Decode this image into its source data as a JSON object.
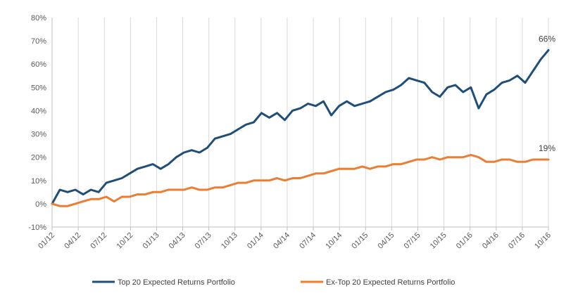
{
  "chart_data": {
    "type": "line",
    "title": "",
    "xlabel": "",
    "ylabel": "",
    "ylim": [
      -10,
      80
    ],
    "y_ticks": [
      -10,
      0,
      10,
      20,
      30,
      40,
      50,
      60,
      70,
      80
    ],
    "y_tick_labels": [
      "-10%",
      "0%",
      "10%",
      "20%",
      "30%",
      "40%",
      "50%",
      "60%",
      "70%",
      "80%"
    ],
    "x_tick_labels": [
      "01/12",
      "04/12",
      "07/12",
      "10/12",
      "01/13",
      "04/13",
      "07/13",
      "10/13",
      "01/14",
      "04/14",
      "07/14",
      "10/14",
      "01/15",
      "04/15",
      "07/15",
      "10/15",
      "01/16",
      "04/16",
      "07/16",
      "10/16"
    ],
    "grid": "vertical",
    "legend_position": "bottom",
    "series": [
      {
        "name": "Top 20 Expected Returns Portfolio",
        "color": "#1f4e79",
        "end_label": "66%",
        "values": [
          0,
          6,
          5,
          6,
          4,
          6,
          5,
          9,
          10,
          11,
          13,
          15,
          16,
          17,
          15,
          17,
          20,
          22,
          23,
          22,
          24,
          28,
          29,
          30,
          32,
          34,
          35,
          39,
          37,
          39,
          36,
          40,
          41,
          43,
          42,
          44,
          38,
          42,
          44,
          42,
          43,
          44,
          46,
          48,
          49,
          51,
          54,
          53,
          52,
          48,
          46,
          50,
          51,
          48,
          50,
          41,
          47,
          49,
          52,
          53,
          55,
          52,
          57,
          62,
          66
        ]
      },
      {
        "name": "Ex-Top 20 Expected Returns Portfolio",
        "color": "#ed7d31",
        "end_label": "19%",
        "values": [
          0,
          -1,
          -1,
          0,
          1,
          2,
          2,
          3,
          1,
          3,
          3,
          4,
          4,
          5,
          5,
          6,
          6,
          6,
          7,
          6,
          6,
          7,
          7,
          8,
          9,
          9,
          10,
          10,
          10,
          11,
          10,
          11,
          11,
          12,
          13,
          13,
          14,
          15,
          15,
          15,
          16,
          15,
          16,
          16,
          17,
          17,
          18,
          19,
          19,
          20,
          19,
          20,
          20,
          20,
          21,
          20,
          18,
          18,
          19,
          19,
          18,
          18,
          19,
          19,
          19
        ]
      }
    ]
  }
}
